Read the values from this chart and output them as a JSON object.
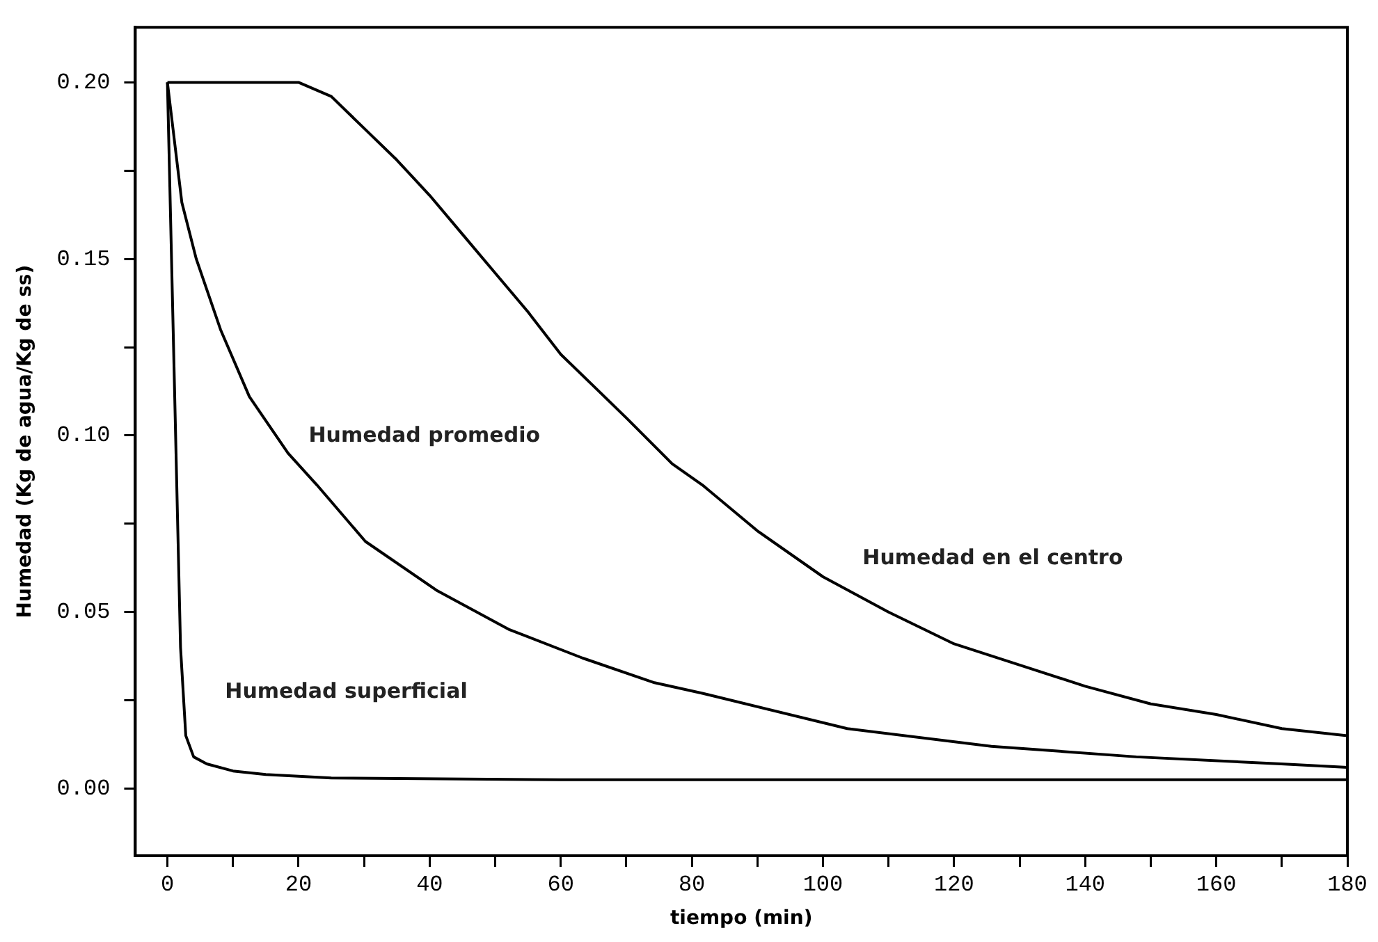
{
  "chart_data": {
    "type": "line",
    "xlabel": "tiempo (min)",
    "ylabel": "Humedad (Kg de agua/Kg de ss)",
    "xlim": [
      -4.9,
      180
    ],
    "ylim": [
      -0.019,
      0.2156
    ],
    "xticks": [
      0,
      {
        "value": 10,
        "label": null
      },
      20,
      {
        "value": 30,
        "label": null
      },
      40,
      {
        "value": 50,
        "label": null
      },
      60,
      {
        "value": 70,
        "label": null
      },
      80,
      {
        "value": 90,
        "label": null
      },
      100,
      {
        "value": 110,
        "label": null
      },
      120,
      {
        "value": 130,
        "label": null
      },
      140,
      {
        "value": 150,
        "label": null
      },
      160,
      {
        "value": 170,
        "label": null
      },
      180
    ],
    "yticks": [
      {
        "value": 0,
        "label": "0.00"
      },
      {
        "value": 0.025,
        "label": null
      },
      {
        "value": 0.05,
        "label": "0.05"
      },
      {
        "value": 0.075,
        "label": null
      },
      {
        "value": 0.1,
        "label": "0.10"
      },
      {
        "value": 0.125,
        "label": null
      },
      {
        "value": 0.15,
        "label": "0.15"
      },
      {
        "value": 0.175,
        "label": null
      },
      {
        "value": 0.2,
        "label": "0.20"
      }
    ],
    "grid": false,
    "legend": false,
    "marker": "none",
    "line_style": "solid",
    "series": [
      {
        "color": "#000000",
        "x": [
          0,
          10,
          20,
          25,
          30,
          35,
          40,
          45,
          50,
          55,
          60,
          65,
          70,
          77,
          81.6,
          90,
          100,
          110,
          120,
          130,
          140,
          150,
          160,
          170,
          180
        ],
        "values": [
          0.2,
          0.2,
          0.2,
          0.196,
          0.187,
          0.178,
          0.168,
          0.157,
          0.146,
          0.135,
          0.123,
          0.114,
          0.105,
          0.092,
          0.086,
          0.073,
          0.06,
          0.05,
          0.041,
          0.035,
          0.029,
          0.024,
          0.021,
          0.017,
          0.015
        ]
      },
      {
        "color": "#000000",
        "x": [
          0,
          2.2,
          4.4,
          8.1,
          12.5,
          18.4,
          22.8,
          30.2,
          41.2,
          52.2,
          63.3,
          74.3,
          81.6,
          103.7,
          125.7,
          147.8,
          169.9,
          180
        ],
        "values": [
          0.2,
          0.166,
          0.15,
          0.13,
          0.111,
          0.095,
          0.086,
          0.07,
          0.056,
          0.045,
          0.037,
          0.03,
          0.027,
          0.017,
          0.012,
          0.009,
          0.007,
          0.006
        ]
      },
      {
        "color": "#000000",
        "x": [
          0,
          1,
          2,
          2.8,
          4,
          6,
          10,
          15,
          25,
          60,
          180
        ],
        "values": [
          0.2,
          0.12,
          0.04,
          0.015,
          0.009,
          0.007,
          0.005,
          0.004,
          0.003,
          0.0025,
          0.0025
        ]
      }
    ],
    "annotations": [
      "Humedad promedio",
      "Humedad en el centro",
      "Humedad superficial"
    ]
  }
}
